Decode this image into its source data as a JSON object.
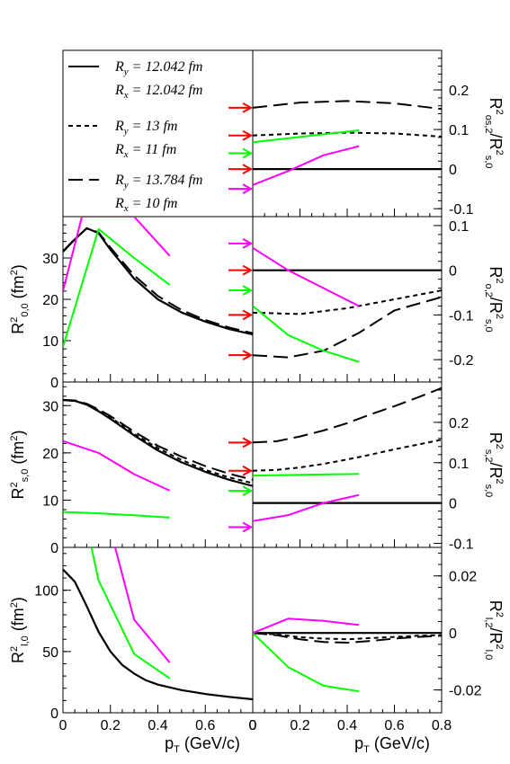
{
  "colors": {
    "model_lines": "#000000",
    "green": "#00ff00",
    "magenta": "#ff00ff",
    "arrow": "#ff0000"
  },
  "legend": {
    "entries": [
      {
        "style": "solid",
        "ry": "R",
        "ry_sub": "y",
        "ry_rest": " = 12.042 fm",
        "rx": "R",
        "rx_sub": "x",
        "rx_rest": " = 12.042 fm"
      },
      {
        "style": "short-dash",
        "ry": "R",
        "ry_sub": "y",
        "ry_rest": " = 13 fm",
        "rx": "R",
        "rx_sub": "x",
        "rx_rest": " = 11 fm"
      },
      {
        "style": "long-dash",
        "ry": "R",
        "ry_sub": "y",
        "ry_rest": " = 13.784 fm",
        "rx": "R",
        "rx_sub": "x",
        "rx_rest": " = 10 fm"
      }
    ]
  },
  "axis_labels": {
    "x_left": {
      "main": "p",
      "sub": "T",
      "rest": " (GeV/c)"
    },
    "x_right": {
      "main": "p",
      "sub": "T",
      "rest": " (GeV/c)"
    },
    "y_left": [
      {
        "main": "R",
        "sup": "2",
        "sub": "0,0",
        "rest": " (fm",
        "sup2": "2",
        "close": ")"
      },
      {
        "main": "R",
        "sup": "2",
        "sub": "s,0",
        "rest": " (fm",
        "sup2": "2",
        "close": ")"
      },
      {
        "main": "R",
        "sup": "2",
        "sub": "l,0",
        "rest": " (fm",
        "sup2": "2",
        "close": ")"
      }
    ],
    "y_right": [
      {
        "num": "R",
        "num_sup": "2",
        "num_sub": "os,2",
        "den": "R",
        "den_sup": "2",
        "den_sub": "s,0"
      },
      {
        "num": "R",
        "num_sup": "2",
        "num_sub": "o,2",
        "den": "R",
        "den_sup": "2",
        "den_sub": "s,0"
      },
      {
        "num": "R",
        "num_sup": "2",
        "num_sub": "s,2",
        "den": "R",
        "den_sup": "2",
        "den_sub": "s,0"
      },
      {
        "num": "R",
        "num_sup": "2",
        "num_sub": "l,2",
        "den": "R",
        "den_sup": "2",
        "den_sub": "l,0"
      }
    ]
  },
  "chart_data": [
    {
      "type": "line",
      "panel": "R2_os2_over_R2_s0",
      "xlim": [
        0,
        0.8
      ],
      "ylim": [
        -0.12,
        0.3
      ],
      "yticks": [
        "0.2",
        "0.1",
        "0",
        "-0.1"
      ],
      "ytick_values": [
        0.2,
        0.1,
        0,
        -0.1
      ],
      "series": [
        {
          "style": "solid",
          "x": [
            0,
            0.8
          ],
          "y": [
            0,
            0
          ]
        },
        {
          "style": "short-dash",
          "x": [
            0,
            0.2,
            0.4,
            0.6,
            0.8
          ],
          "y": [
            0.085,
            0.09,
            0.092,
            0.09,
            0.082
          ]
        },
        {
          "style": "long-dash",
          "x": [
            0,
            0.2,
            0.4,
            0.6,
            0.8
          ],
          "y": [
            0.155,
            0.168,
            0.172,
            0.166,
            0.152
          ]
        },
        {
          "style": "green",
          "x": [
            0,
            0.45
          ],
          "y": [
            0.068,
            0.098
          ]
        },
        {
          "style": "magenta",
          "x": [
            0,
            0.15,
            0.3,
            0.45
          ],
          "y": [
            -0.04,
            -0.005,
            0.035,
            0.058
          ]
        }
      ],
      "arrows": [
        {
          "color": "arrow",
          "y": 0.155
        },
        {
          "color": "arrow",
          "y": 0.085
        },
        {
          "color": "green",
          "y": 0.04
        },
        {
          "color": "arrow",
          "y": 0.0
        },
        {
          "color": "magenta",
          "y": -0.05
        }
      ]
    },
    {
      "type": "line",
      "panel": "R2_00",
      "xlim": [
        0,
        0.8
      ],
      "ylim": [
        0,
        40
      ],
      "yticks": [
        "30",
        "20",
        "10",
        "0"
      ],
      "ytick_values": [
        30,
        20,
        10,
        0
      ],
      "series": [
        {
          "style": "solid",
          "x": [
            0,
            0.05,
            0.1,
            0.15,
            0.2,
            0.3,
            0.4,
            0.5,
            0.6,
            0.7,
            0.8
          ],
          "y": [
            31.5,
            34.5,
            37.2,
            36,
            32,
            25,
            20,
            16.8,
            14.6,
            12.8,
            11.5
          ]
        },
        {
          "style": "long-dash",
          "x": [
            0,
            0.05,
            0.1,
            0.15,
            0.2,
            0.3,
            0.4,
            0.5,
            0.6,
            0.7,
            0.8
          ],
          "y": [
            31.6,
            34.6,
            37.1,
            36.2,
            32.5,
            25.8,
            20.8,
            17.4,
            15,
            13.2,
            11.8
          ]
        },
        {
          "style": "green",
          "x": [
            0,
            0.15,
            0.3,
            0.45
          ],
          "y": [
            8.5,
            37,
            30,
            23.5
          ]
        },
        {
          "style": "magenta",
          "x": [
            0,
            0.08,
            0.3,
            0.45
          ],
          "y": [
            22,
            40,
            40,
            30.5
          ]
        }
      ]
    },
    {
      "type": "line",
      "panel": "R2_o2_over_R2_s0",
      "xlim": [
        0,
        0.8
      ],
      "ylim": [
        -0.25,
        0.12
      ],
      "yticks": [
        "0.1",
        "0",
        "-0.1",
        "-0.2"
      ],
      "ytick_values": [
        0.1,
        0,
        -0.1,
        -0.2
      ],
      "series": [
        {
          "style": "solid",
          "x": [
            0,
            0.8
          ],
          "y": [
            0,
            0
          ]
        },
        {
          "style": "short-dash",
          "x": [
            0,
            0.2,
            0.4,
            0.6,
            0.8
          ],
          "y": [
            -0.095,
            -0.098,
            -0.085,
            -0.065,
            -0.045
          ]
        },
        {
          "style": "long-dash",
          "x": [
            0,
            0.15,
            0.3,
            0.45,
            0.6,
            0.8
          ],
          "y": [
            -0.19,
            -0.195,
            -0.18,
            -0.14,
            -0.09,
            -0.06
          ]
        },
        {
          "style": "green",
          "x": [
            0,
            0.15,
            0.3,
            0.45
          ],
          "y": [
            -0.08,
            -0.145,
            -0.18,
            -0.205
          ]
        },
        {
          "style": "magenta",
          "x": [
            0,
            0.15,
            0.3,
            0.45
          ],
          "y": [
            0.05,
            0.0,
            -0.04,
            -0.08
          ]
        }
      ],
      "arrows": [
        {
          "color": "magenta",
          "y": 0.06
        },
        {
          "color": "arrow",
          "y": 0.0
        },
        {
          "color": "green",
          "y": -0.045
        },
        {
          "color": "arrow",
          "y": -0.1
        },
        {
          "color": "arrow",
          "y": -0.19
        }
      ]
    },
    {
      "type": "line",
      "panel": "R2_s0",
      "xlim": [
        0,
        0.8
      ],
      "ylim": [
        0,
        35
      ],
      "yticks": [
        "30",
        "20",
        "10",
        "0"
      ],
      "ytick_values": [
        30,
        20,
        10,
        0
      ],
      "series": [
        {
          "style": "solid",
          "x": [
            0,
            0.05,
            0.1,
            0.15,
            0.2,
            0.3,
            0.4,
            0.5,
            0.6,
            0.7,
            0.8
          ],
          "y": [
            31.2,
            31,
            30.2,
            28.8,
            27.2,
            23.7,
            20.5,
            18,
            16,
            14.3,
            13
          ]
        },
        {
          "style": "short-dash",
          "x": [
            0,
            0.05,
            0.1,
            0.15,
            0.2,
            0.3,
            0.4,
            0.5,
            0.6,
            0.7,
            0.8
          ],
          "y": [
            31.2,
            31,
            30.3,
            29,
            27.5,
            24,
            21,
            18.5,
            16.4,
            14.8,
            13.6
          ]
        },
        {
          "style": "long-dash",
          "x": [
            0,
            0.05,
            0.1,
            0.15,
            0.2,
            0.3,
            0.4,
            0.5,
            0.6,
            0.7,
            0.8
          ],
          "y": [
            31.2,
            31.1,
            30.4,
            29.2,
            27.8,
            24.5,
            21.5,
            19.2,
            17.2,
            15.6,
            14.3
          ]
        },
        {
          "style": "green",
          "x": [
            0,
            0.15,
            0.3,
            0.45
          ],
          "y": [
            7.5,
            7.2,
            6.8,
            6.3
          ]
        },
        {
          "style": "magenta",
          "x": [
            0,
            0.15,
            0.3,
            0.45
          ],
          "y": [
            22.5,
            20,
            15.5,
            12
          ]
        }
      ]
    },
    {
      "type": "line",
      "panel": "R2_s2_over_R2_s0",
      "xlim": [
        0,
        0.8
      ],
      "ylim": [
        -0.11,
        0.3
      ],
      "yticks": [
        "0.2",
        "0.1",
        "0",
        "-0.1"
      ],
      "ytick_values": [
        0.2,
        0.1,
        0,
        -0.1
      ],
      "series": [
        {
          "style": "solid",
          "x": [
            0,
            0.8
          ],
          "y": [
            0,
            0
          ]
        },
        {
          "style": "short-dash",
          "x": [
            0,
            0.1,
            0.2,
            0.3,
            0.4,
            0.5,
            0.6,
            0.7,
            0.8
          ],
          "y": [
            0.08,
            0.082,
            0.088,
            0.097,
            0.108,
            0.12,
            0.133,
            0.145,
            0.157
          ]
        },
        {
          "style": "long-dash",
          "x": [
            0,
            0.1,
            0.2,
            0.3,
            0.4,
            0.5,
            0.6,
            0.7,
            0.8
          ],
          "y": [
            0.15,
            0.153,
            0.165,
            0.18,
            0.198,
            0.22,
            0.24,
            0.262,
            0.285
          ]
        },
        {
          "style": "green",
          "x": [
            0,
            0.45
          ],
          "y": [
            0.068,
            0.072
          ]
        },
        {
          "style": "magenta",
          "x": [
            0,
            0.15,
            0.3,
            0.45
          ],
          "y": [
            -0.045,
            -0.03,
            0.0,
            0.02
          ]
        }
      ],
      "arrows": [
        {
          "color": "arrow",
          "y": 0.15
        },
        {
          "color": "arrow",
          "y": 0.08
        },
        {
          "color": "green",
          "y": 0.03
        },
        {
          "color": "magenta",
          "y": -0.06
        }
      ]
    },
    {
      "type": "line",
      "panel": "R2_l0",
      "xlim": [
        0,
        0.8
      ],
      "ylim": [
        0,
        135
      ],
      "yticks": [
        "100",
        "50",
        "0"
      ],
      "ytick_values": [
        100,
        50,
        0
      ],
      "xticks": [
        "0",
        "0.2",
        "0.4",
        "0.6",
        "0"
      ],
      "xtick_values": [
        0,
        0.2,
        0.4,
        0.6,
        0.8
      ],
      "series": [
        {
          "style": "solid",
          "x": [
            0,
            0.05,
            0.1,
            0.15,
            0.2,
            0.25,
            0.3,
            0.35,
            0.4,
            0.5,
            0.6,
            0.7,
            0.8
          ],
          "y": [
            117,
            107,
            87,
            66,
            50,
            39,
            32,
            26.5,
            23,
            18.5,
            15.3,
            13,
            11
          ]
        },
        {
          "style": "green",
          "x": [
            0.12,
            0.15,
            0.3,
            0.45
          ],
          "y": [
            135,
            108,
            48,
            28
          ]
        },
        {
          "style": "magenta",
          "x": [
            0.22,
            0.3,
            0.45
          ],
          "y": [
            135,
            76,
            41
          ]
        }
      ]
    },
    {
      "type": "line",
      "panel": "R2_l2_over_R2_l0",
      "xlim": [
        0,
        0.8
      ],
      "ylim": [
        -0.028,
        0.03
      ],
      "yticks": [
        "0.02",
        "0",
        "-0.02"
      ],
      "ytick_values": [
        0.02,
        0,
        -0.02
      ],
      "xticks": [
        "0",
        "0.2",
        "0.4",
        "0.6",
        "0.8"
      ],
      "xtick_values": [
        0,
        0.2,
        0.4,
        0.6,
        0.8
      ],
      "series": [
        {
          "style": "solid",
          "x": [
            0,
            0.8
          ],
          "y": [
            0,
            0
          ]
        },
        {
          "style": "short-dash",
          "x": [
            0,
            0.1,
            0.2,
            0.3,
            0.4,
            0.5,
            0.6,
            0.7,
            0.8
          ],
          "y": [
            0,
            -0.0005,
            -0.0015,
            -0.002,
            -0.0022,
            -0.0018,
            -0.0014,
            -0.001,
            -0.0008
          ]
        },
        {
          "style": "long-dash",
          "x": [
            0,
            0.1,
            0.2,
            0.3,
            0.4,
            0.5,
            0.6,
            0.7,
            0.8
          ],
          "y": [
            0,
            -0.0008,
            -0.0022,
            -0.0032,
            -0.0034,
            -0.0028,
            -0.002,
            -0.0014,
            -0.001
          ]
        },
        {
          "style": "green",
          "x": [
            0,
            0.15,
            0.3,
            0.45
          ],
          "y": [
            0,
            -0.012,
            -0.0185,
            -0.0205
          ]
        },
        {
          "style": "magenta",
          "x": [
            0,
            0.15,
            0.3,
            0.45
          ],
          "y": [
            0,
            0.005,
            0.0042,
            0.0028
          ]
        }
      ]
    }
  ]
}
